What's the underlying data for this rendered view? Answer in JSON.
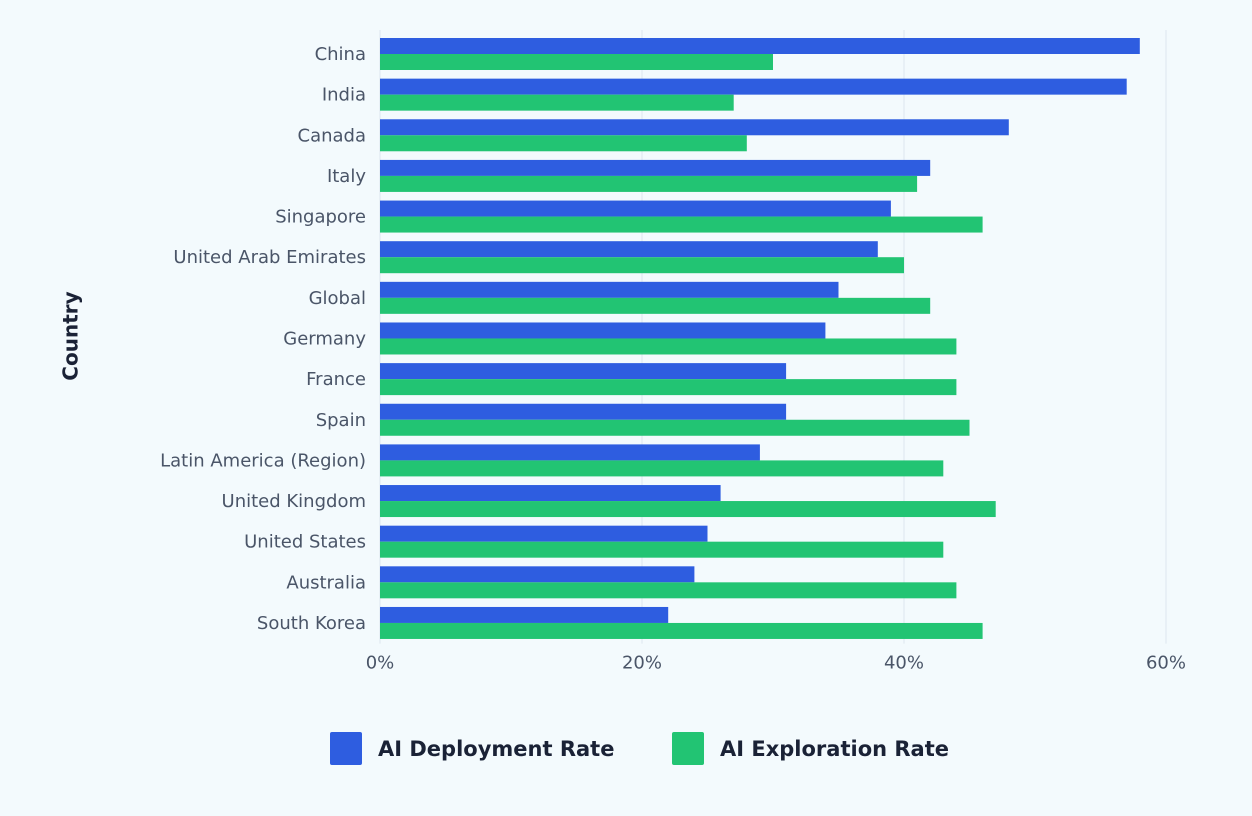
{
  "chart_data": {
    "type": "bar",
    "orientation": "horizontal",
    "y_axis_label": "Country",
    "categories": [
      "China",
      "India",
      "Canada",
      "Italy",
      "Singapore",
      "United Arab Emirates",
      "Global",
      "Germany",
      "France",
      "Spain",
      "Latin America (Region)",
      "United Kingdom",
      "United States",
      "Australia",
      "South Korea"
    ],
    "series": [
      {
        "name": "AI Deployment Rate",
        "color": "#2e5de0",
        "values": [
          58,
          57,
          48,
          42,
          39,
          38,
          35,
          34,
          31,
          31,
          29,
          26,
          25,
          24,
          22
        ]
      },
      {
        "name": "AI Exploration Rate",
        "color": "#22c473",
        "values": [
          30,
          27,
          28,
          41,
          46,
          40,
          42,
          44,
          44,
          45,
          43,
          47,
          43,
          44,
          46
        ]
      }
    ],
    "xlim": [
      0,
      60
    ],
    "xticks": [
      {
        "value": 0,
        "label": "0%"
      },
      {
        "value": 20,
        "label": "20%"
      },
      {
        "value": 40,
        "label": "40%"
      },
      {
        "value": 60,
        "label": "60%"
      }
    ],
    "grid": true,
    "legend": "bottom"
  }
}
